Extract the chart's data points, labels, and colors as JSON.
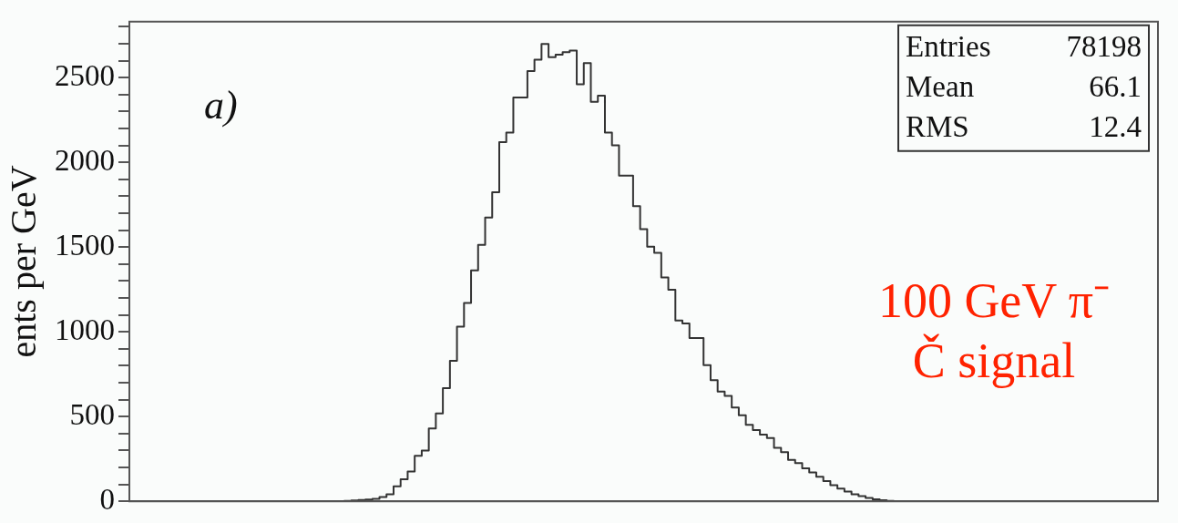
{
  "chart_data": {
    "type": "step",
    "ylabel": "ents per GeV",
    "categories": [
      null,
      null,
      null,
      null,
      null,
      null,
      null,
      null,
      null,
      null,
      null,
      null,
      null,
      null,
      null,
      null,
      null,
      null,
      null,
      null,
      null,
      null,
      null,
      null,
      null,
      null,
      null,
      null,
      null,
      null,
      null,
      null,
      null,
      null,
      null,
      null,
      null,
      null,
      null,
      null,
      null,
      null,
      null,
      null,
      null,
      null,
      null,
      null,
      null,
      null,
      null,
      null,
      null,
      null,
      null,
      null,
      null,
      null,
      null,
      null,
      null,
      null,
      null,
      null,
      null,
      null,
      null,
      null,
      null,
      null,
      null,
      null,
      null,
      null,
      null,
      null,
      null,
      null,
      null,
      null,
      null,
      null,
      null,
      null,
      null,
      null,
      null,
      null,
      null,
      null,
      null,
      null,
      null,
      null,
      null,
      null,
      null,
      null,
      null,
      null,
      null,
      null,
      null,
      null,
      null,
      null,
      null,
      null,
      null,
      null,
      null,
      null,
      null,
      null,
      null,
      null,
      null,
      null,
      null,
      null,
      null,
      null,
      null,
      null,
      null,
      null,
      null,
      null,
      null,
      null,
      null,
      null,
      null,
      null,
      null,
      null,
      null,
      null,
      null,
      null,
      null,
      null,
      null,
      null,
      null,
      null,
      null
    ],
    "series": [
      {
        "color": "#333333",
        "values": [
          0,
          0,
          0,
          0,
          0,
          0,
          0,
          0,
          0,
          0,
          0,
          0,
          0,
          0,
          0,
          0,
          0,
          0,
          0,
          0,
          0,
          0,
          0,
          0,
          0,
          0,
          0,
          0,
          0,
          0,
          0,
          3,
          5,
          8,
          10,
          15,
          25,
          41,
          88,
          130,
          176,
          269,
          300,
          430,
          518,
          668,
          829,
          1031,
          1171,
          1363,
          1513,
          1674,
          1824,
          2119,
          2176,
          2383,
          2383,
          2539,
          2606,
          2699,
          2620,
          2635,
          2650,
          2660,
          2461,
          2585,
          2357,
          2394,
          2176,
          2101,
          1922,
          1922,
          1741,
          1606,
          1503,
          1466,
          1321,
          1249,
          1067,
          1050,
          964,
          964,
          803,
          715,
          648,
          622,
          554,
          508,
          451,
          420,
          394,
          373,
          316,
          290,
          244,
          225,
          195,
          170,
          145,
          120,
          95,
          75,
          58,
          42,
          30,
          20,
          12,
          7,
          3,
          0,
          0,
          0,
          0,
          0,
          0,
          0,
          0,
          0,
          0,
          0,
          0,
          0,
          0,
          0,
          0,
          0,
          0,
          0,
          0,
          0,
          0,
          0,
          0,
          0,
          0,
          0,
          0,
          0,
          0,
          0,
          0,
          0,
          0,
          0,
          0,
          0,
          0
        ]
      }
    ],
    "ylim": [
      0,
      2830
    ],
    "yticks": [
      0,
      {
        "value": 100,
        "label": null
      },
      {
        "value": 200,
        "label": null
      },
      {
        "value": 300,
        "label": null
      },
      {
        "value": 400,
        "label": null
      },
      500,
      {
        "value": 600,
        "label": null
      },
      {
        "value": 700,
        "label": null
      },
      {
        "value": 800,
        "label": null
      },
      {
        "value": 900,
        "label": null
      },
      1000,
      {
        "value": 1100,
        "label": null
      },
      {
        "value": 1200,
        "label": null
      },
      {
        "value": 1300,
        "label": null
      },
      {
        "value": 1400,
        "label": null
      },
      1500,
      {
        "value": 1600,
        "label": null
      },
      {
        "value": 1700,
        "label": null
      },
      {
        "value": 1800,
        "label": null
      },
      {
        "value": 1900,
        "label": null
      },
      2000,
      {
        "value": 2100,
        "label": null
      },
      {
        "value": 2200,
        "label": null
      },
      {
        "value": 2300,
        "label": null
      },
      {
        "value": 2400,
        "label": null
      },
      2500,
      {
        "value": 2600,
        "label": null
      },
      {
        "value": 2700,
        "label": null
      },
      {
        "value": 2800,
        "label": null
      }
    ],
    "tick_labels": "y",
    "grid": false,
    "legend": false,
    "annotations": [
      "a)",
      "Entries 78198",
      "Mean 66.1",
      "RMS 12.4",
      "100 GeV π⁻",
      "Č signal"
    ]
  }
}
